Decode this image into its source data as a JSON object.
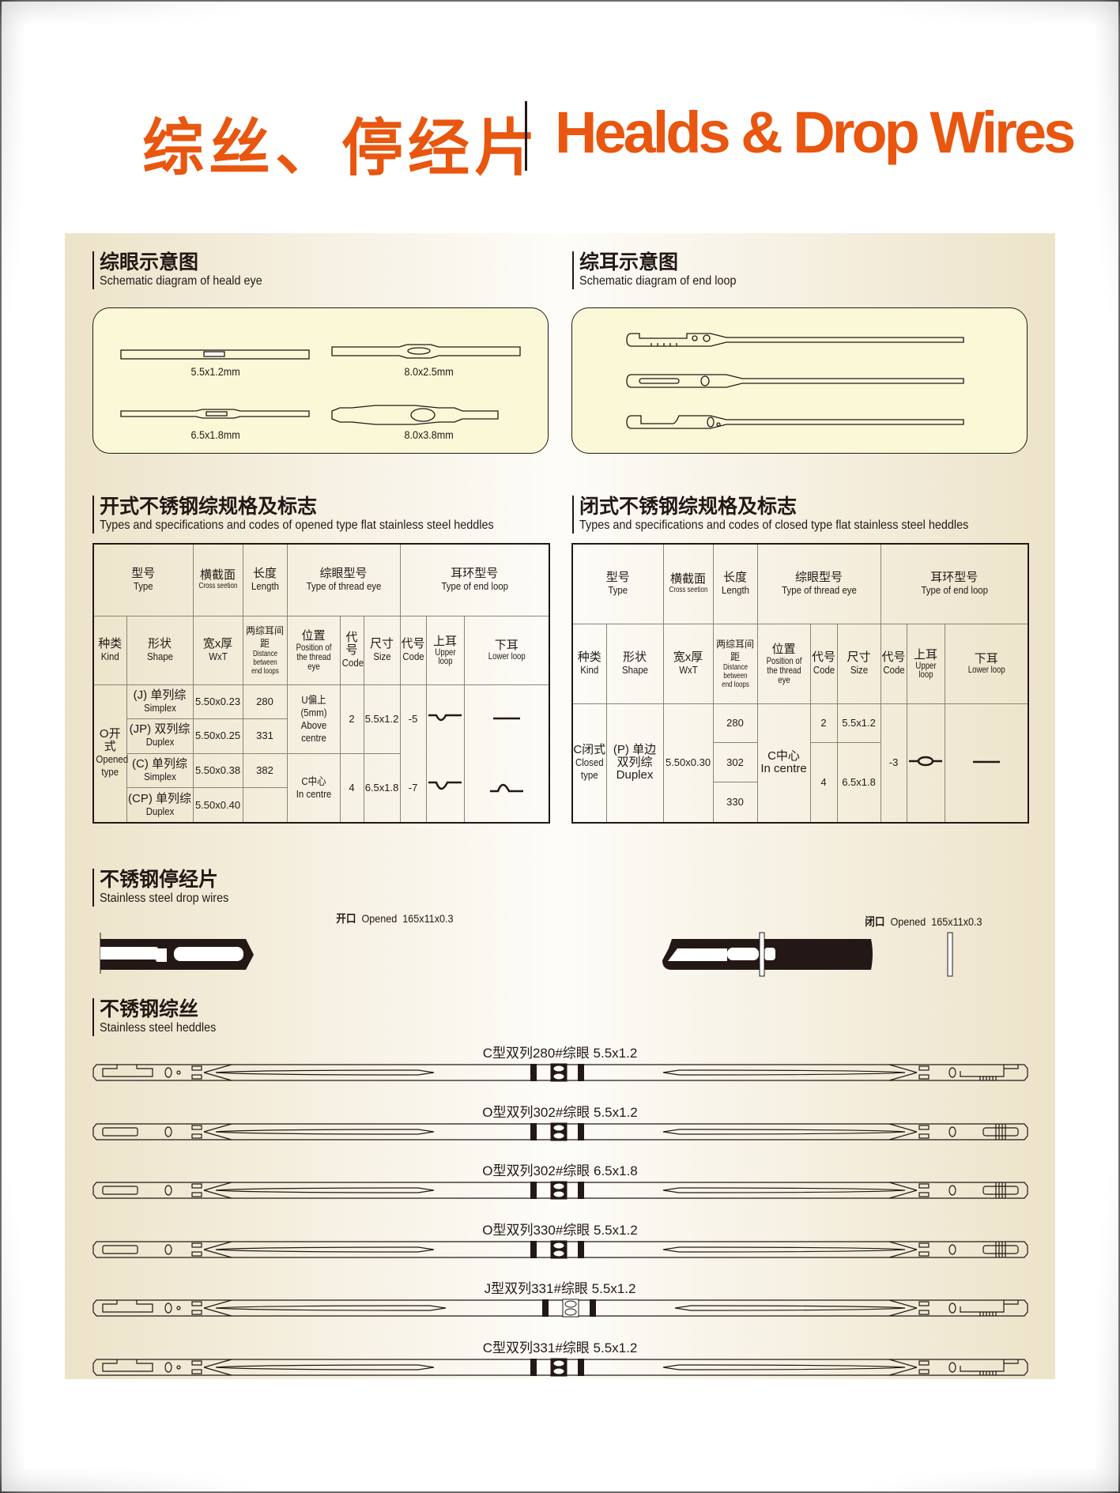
{
  "header": {
    "title_cn": "综丝、停经片",
    "title_en": "Healds & Drop Wires",
    "accent": "#e8560f"
  },
  "eye_diagram": {
    "title_cn": "综眼示意图",
    "title_en": "Schematic diagram of heald eye",
    "labels": [
      "5.5x1.2mm",
      "8.0x2.5mm",
      "6.5x1.8mm",
      "8.0x3.8mm"
    ]
  },
  "loop_diagram": {
    "title_cn": "综耳示意图",
    "title_en": "Schematic diagram of end loop"
  },
  "headers": {
    "type_cn": "型号",
    "type_en": "Type",
    "cross_cn": "横截面",
    "cross_en": "Cross seetion",
    "length_cn": "长度",
    "length_en": "Length",
    "eye_cn": "综眼型号",
    "eye_en": "Type of thread eye",
    "loop_cn": "耳环型号",
    "loop_en": "Type of end loop",
    "kind_cn": "种类",
    "kind_en": "Kind",
    "shape_cn": "形状",
    "shape_en": "Shape",
    "wxt_cn": "宽x厚",
    "wxt_en": "WxT",
    "dist_cn": "两综耳间距",
    "dist_en": "Distance between end loops",
    "pos_cn": "位置",
    "pos_en": "Position of the thread eye",
    "code_cn": "代号",
    "code_en": "Code",
    "size_cn": "尺寸",
    "size_en": "Size",
    "upper_cn": "上耳",
    "upper_en": "Upper loop",
    "lower_cn": "下耳",
    "lower_en": "Lower loop"
  },
  "open_table": {
    "title_cn": "开式不锈钢综规格及标志",
    "title_en": "Types and specifications and codes of opened type flat stainless steel heddles",
    "kind_cn": "O开式",
    "kind_en": "Opened type",
    "shapes": [
      {
        "cn": "(J) 单列综",
        "en": "Simplex"
      },
      {
        "cn": "(JP) 双列综",
        "en": "Duplex"
      },
      {
        "cn": "(C) 单列综",
        "en": "Simplex"
      },
      {
        "cn": "(CP) 单列综",
        "en": "Duplex"
      }
    ],
    "wxt": [
      "5.50x0.23",
      "5.50x0.25",
      "5.50x0.38",
      "5.50x0.40"
    ],
    "lengths": [
      "280",
      "331",
      "382",
      ""
    ],
    "positions": [
      {
        "cn": "U偏上 (5mm)",
        "en": "Above centre"
      },
      {
        "cn": "C中心",
        "en": "In centre"
      }
    ],
    "eye_rows": [
      {
        "code": "2",
        "size": "5.5x1.2"
      },
      {
        "code": "4",
        "size": "6.5x1.8"
      }
    ],
    "loop_codes": [
      "-5",
      "-7"
    ]
  },
  "closed_table": {
    "title_cn": "闭式不锈钢综规格及标志",
    "title_en": "Types and specifications and codes of closed type flat stainless steel heddles",
    "kind_cn": "C闭式",
    "kind_en": "Closed type",
    "shape_cn": "(P) 单边双列综",
    "shape_en": "Duplex",
    "wxt": "5.50x0.30",
    "lengths": [
      "280",
      "302",
      "330"
    ],
    "position_cn": "C中心",
    "position_en": "In centre",
    "eye_rows": [
      {
        "code": "2",
        "size": "5.5x1.2"
      },
      {
        "code": "4",
        "size": "6.5x1.8"
      }
    ],
    "loop_code": "-3"
  },
  "drop_wires": {
    "title_cn": "不锈钢停经片",
    "title_en": "Stainless steel drop wires",
    "opened": {
      "cn": "开口",
      "en": "Opened",
      "size": "165x11x0.3"
    },
    "closed": {
      "cn": "闭口",
      "en": "Opened",
      "size": "165x11x0.3"
    }
  },
  "heddles": {
    "title_cn": "不锈钢综丝",
    "title_en": "Stainless steel heddles",
    "items": [
      {
        "label": "C型双列280#综眼  5.5x1.2",
        "end": "C"
      },
      {
        "label": "O型双列302#综眼  5.5x1.2",
        "end": "O"
      },
      {
        "label": "O型双列302#综眼  6.5x1.8",
        "end": "O"
      },
      {
        "label": "O型双列330#综眼  5.5x1.2",
        "end": "O"
      },
      {
        "label": "J型双列331#综眼  5.5x1.2",
        "end": "J"
      },
      {
        "label": "C型双列331#综眼  5.5x1.2",
        "end": "C"
      }
    ]
  }
}
